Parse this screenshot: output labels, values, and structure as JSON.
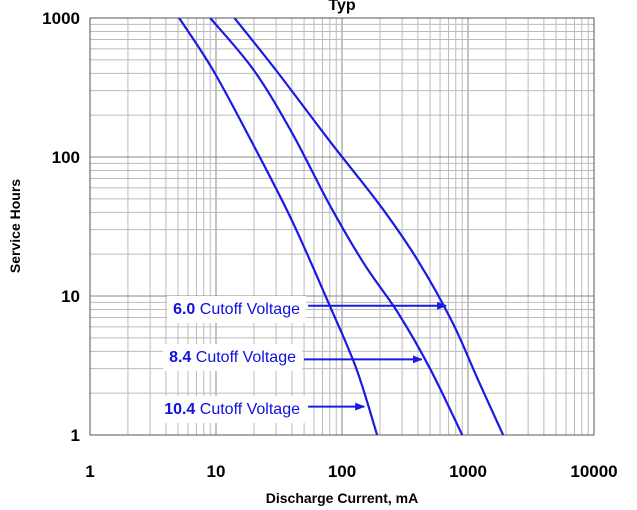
{
  "chart_data": {
    "type": "line",
    "title": "Typ",
    "xlabel": "Discharge Current, mA",
    "ylabel": "Service Hours",
    "x_scale": "log",
    "y_scale": "log",
    "xlim": [
      1,
      10000
    ],
    "ylim": [
      1,
      1000
    ],
    "x_ticks": [
      "1",
      "10",
      "100",
      "1000",
      "10000"
    ],
    "y_ticks": [
      "1",
      "10",
      "100",
      "1000"
    ],
    "grid": true,
    "line_color": "#1a1ae6",
    "series": [
      {
        "cutoff": "10.4",
        "points": [
          [
            5.1,
            1000
          ],
          [
            9.5,
            420
          ],
          [
            20,
            120
          ],
          [
            40,
            35
          ],
          [
            80,
            8.5
          ],
          [
            130,
            3
          ],
          [
            190,
            1
          ]
        ]
      },
      {
        "cutoff": "8.4",
        "points": [
          [
            9,
            1000
          ],
          [
            20,
            420
          ],
          [
            40,
            150
          ],
          [
            80,
            45
          ],
          [
            150,
            17
          ],
          [
            280,
            7.5
          ],
          [
            500,
            3
          ],
          [
            900,
            1
          ]
        ]
      },
      {
        "cutoff": "6.0",
        "points": [
          [
            14,
            1000
          ],
          [
            30,
            420
          ],
          [
            80,
            130
          ],
          [
            200,
            45
          ],
          [
            400,
            18
          ],
          [
            750,
            6.5
          ],
          [
            1200,
            2.5
          ],
          [
            1900,
            1
          ]
        ]
      }
    ],
    "annotations": [
      {
        "value": "6.0",
        "label": " Cutoff Voltage",
        "arrow_to": [
          670,
          8.5
        ]
      },
      {
        "value": "8.4",
        "label": " Cutoff Voltage",
        "arrow_to": [
          430,
          3.5
        ]
      },
      {
        "value": "10.4",
        "label": " Cutoff Voltage",
        "arrow_to": [
          150,
          1.6
        ]
      }
    ]
  }
}
